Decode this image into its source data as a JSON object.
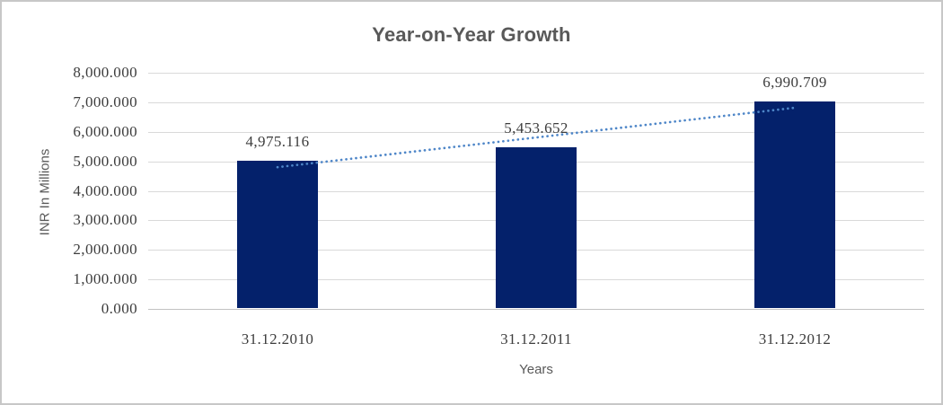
{
  "chart_data": {
    "type": "bar",
    "title": "Year-on-Year Growth",
    "xlabel": "Years",
    "ylabel": "INR In Millions",
    "categories": [
      "31.12.2010",
      "31.12.2011",
      "31.12.2012"
    ],
    "values": [
      4975.116,
      5453.652,
      6990.709
    ],
    "data_labels": [
      "4,975.116",
      "5,453.652",
      "6,990.709"
    ],
    "yticks": [
      {
        "label": "8,000.000",
        "value": 8000
      },
      {
        "label": "7,000.000",
        "value": 7000
      },
      {
        "label": "6,000.000",
        "value": 6000
      },
      {
        "label": "5,000.000",
        "value": 5000
      },
      {
        "label": "4,000.000",
        "value": 4000
      },
      {
        "label": "3,000.000",
        "value": 3000
      },
      {
        "label": "2,000.000",
        "value": 2000
      },
      {
        "label": "1,000.000",
        "value": 1000
      },
      {
        "label": "0.000",
        "value": 0
      }
    ],
    "ylim": [
      0,
      8000
    ],
    "grid": true,
    "legend": false,
    "bar_color": "#04216b",
    "gridline_color": "#d9d9d9",
    "axis_line_color": "#c3c3c3",
    "text_color": "#3d3d3d",
    "title_color": "#595959",
    "trendline": {
      "type": "linear",
      "style": "dotted",
      "color": "#4e86c8",
      "endpoint_values": [
        4798.7,
        6814.3
      ]
    }
  }
}
